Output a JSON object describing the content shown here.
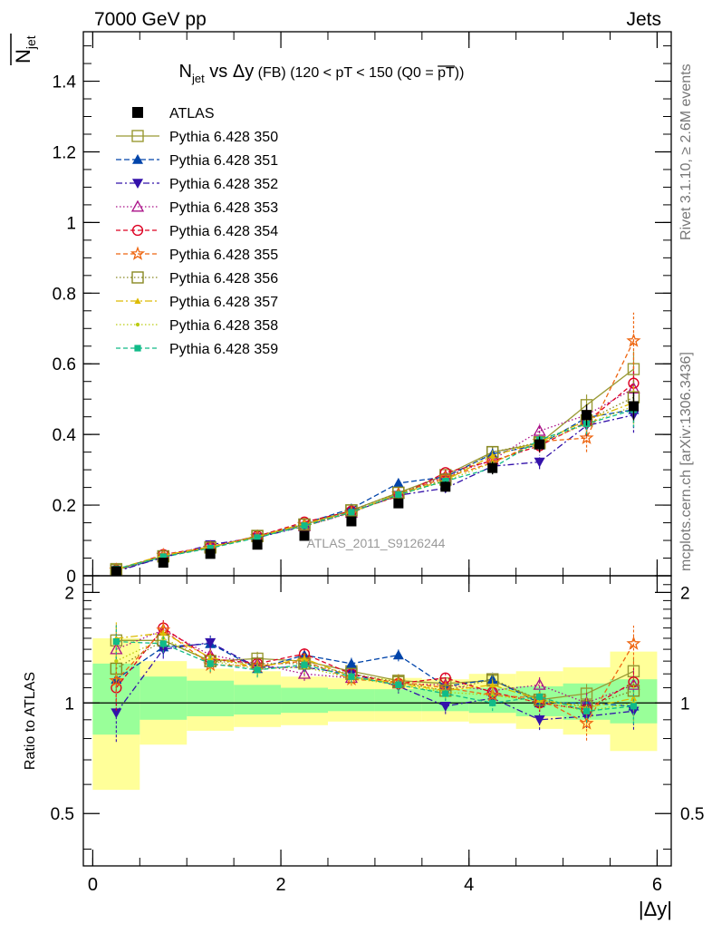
{
  "header": {
    "left": "7000 GeV pp",
    "right": "Jets"
  },
  "side_text": {
    "rivet": "Rivet 3.1.10, ≥ 2.6M events",
    "mcplots": "mcplots.cern.ch [arXiv:1306.3436]"
  },
  "watermark": "ATLAS_2011_S9126244",
  "main_title": {
    "n": "N",
    "n_sub": "jet",
    "vs": " vs ",
    "dy": "Δy",
    "fb": " (FB) ",
    "range": "(120 < pT < 150 (Q0 = ",
    "q0": "pT",
    "close": "))"
  },
  "ylabel_top": {
    "n": "N",
    "sub": "jet"
  },
  "ylabel_bottom": "Ratio to ATLAS",
  "xlabel": "|Δy|",
  "colors": {
    "atlas": "#000000",
    "band_inner": "#99ff99",
    "band_outer": "#ffff99"
  },
  "chart_data": [
    {
      "type": "line",
      "panel": "main",
      "x": [
        0.25,
        0.75,
        1.25,
        1.75,
        2.25,
        2.75,
        3.25,
        3.75,
        4.25,
        4.75,
        5.25,
        5.75
      ],
      "x_edges": [
        0,
        0.5,
        1,
        1.5,
        2,
        2.5,
        3,
        3.5,
        4,
        4.5,
        5,
        5.5,
        6
      ],
      "xlim": [
        -0.1,
        6.15
      ],
      "ylim": [
        0,
        1.54
      ],
      "xticks": [
        0,
        2,
        4,
        6
      ],
      "yticks": [
        0,
        0.2,
        0.4,
        0.6,
        0.8,
        1,
        1.2,
        1.4
      ],
      "ytick_labels": [
        "0",
        "0.2",
        "0.4",
        "0.6",
        "0.8",
        "1",
        "1.2",
        "1.4"
      ],
      "legend_position": "top-left",
      "data": {
        "name": "ATLAS",
        "marker": "square-filled",
        "y": [
          0.013,
          0.037,
          0.062,
          0.088,
          0.113,
          0.154,
          0.205,
          0.252,
          0.305,
          0.372,
          0.455,
          0.48
        ],
        "yerr": [
          0.002,
          0.004,
          0.005,
          0.006,
          0.008,
          0.01,
          0.012,
          0.015,
          0.018,
          0.022,
          0.03,
          0.04
        ]
      },
      "series": [
        {
          "name": "Pythia 6.428 350",
          "color": "#999933",
          "dash": "solid",
          "marker": "square-open",
          "y": [
            0.019,
            0.055,
            0.08,
            0.113,
            0.145,
            0.185,
            0.235,
            0.285,
            0.35,
            0.375,
            0.483,
            0.585
          ],
          "yerr": [
            0.002,
            0.003,
            0.004,
            0.005,
            0.006,
            0.007,
            0.01,
            0.012,
            0.015,
            0.02,
            0.03,
            0.05
          ]
        },
        {
          "name": "Pythia 6.428 351",
          "color": "#0044aa",
          "dash": "6,3",
          "marker": "triangle-up",
          "y": [
            0.015,
            0.052,
            0.082,
            0.108,
            0.148,
            0.19,
            0.262,
            0.28,
            0.345,
            0.37,
            0.448,
            0.47
          ],
          "yerr": [
            0.002,
            0.003,
            0.004,
            0.005,
            0.006,
            0.007,
            0.01,
            0.012,
            0.015,
            0.02,
            0.03,
            0.05
          ]
        },
        {
          "name": "Pythia 6.428 352",
          "color": "#3311aa",
          "dash": "7,3,2,3",
          "marker": "triangle-down",
          "y": [
            0.012,
            0.052,
            0.088,
            0.108,
            0.14,
            0.18,
            0.228,
            0.248,
            0.31,
            0.322,
            0.425,
            0.455
          ],
          "yerr": [
            0.002,
            0.003,
            0.004,
            0.005,
            0.006,
            0.007,
            0.01,
            0.012,
            0.015,
            0.02,
            0.03,
            0.05
          ]
        },
        {
          "name": "Pythia 6.428 353",
          "color": "#aa1188",
          "dash": "1.5,2.5",
          "marker": "triangle-open",
          "y": [
            0.018,
            0.058,
            0.083,
            0.112,
            0.14,
            0.178,
            0.232,
            0.282,
            0.328,
            0.41,
            0.455,
            0.53
          ],
          "yerr": [
            0.002,
            0.003,
            0.004,
            0.005,
            0.006,
            0.007,
            0.01,
            0.012,
            0.015,
            0.02,
            0.03,
            0.05
          ]
        },
        {
          "name": "Pythia 6.428 354",
          "color": "#dd0022",
          "dash": "5,3",
          "marker": "circle-open",
          "y": [
            0.015,
            0.06,
            0.082,
            0.112,
            0.152,
            0.183,
            0.225,
            0.292,
            0.325,
            0.368,
            0.435,
            0.545
          ],
          "yerr": [
            0.002,
            0.003,
            0.004,
            0.005,
            0.006,
            0.007,
            0.01,
            0.012,
            0.015,
            0.02,
            0.03,
            0.05
          ]
        },
        {
          "name": "Pythia 6.428 355",
          "color": "#ee6611",
          "dash": "5,3",
          "marker": "star-open",
          "y": [
            0.016,
            0.058,
            0.078,
            0.11,
            0.145,
            0.178,
            0.232,
            0.278,
            0.32,
            0.38,
            0.39,
            0.665
          ],
          "yerr": [
            0.002,
            0.003,
            0.004,
            0.005,
            0.006,
            0.007,
            0.01,
            0.012,
            0.015,
            0.02,
            0.04,
            0.08
          ]
        },
        {
          "name": "Pythia 6.428 356",
          "color": "#888822",
          "dash": "1.5,2.5",
          "marker": "square-open",
          "y": [
            0.016,
            0.055,
            0.08,
            0.112,
            0.145,
            0.185,
            0.235,
            0.272,
            0.35,
            0.378,
            0.44,
            0.505
          ],
          "yerr": [
            0.002,
            0.003,
            0.004,
            0.005,
            0.006,
            0.007,
            0.01,
            0.012,
            0.015,
            0.02,
            0.03,
            0.05
          ]
        },
        {
          "name": "Pythia 6.428 357",
          "color": "#ddbb00",
          "dash": "8,3,2,3",
          "marker": "tri-small",
          "y": [
            0.019,
            0.058,
            0.082,
            0.11,
            0.148,
            0.18,
            0.232,
            0.27,
            0.34,
            0.378,
            0.44,
            0.49
          ],
          "yerr": [
            0.002,
            0.003,
            0.004,
            0.005,
            0.006,
            0.007,
            0.01,
            0.012,
            0.015,
            0.02,
            0.03,
            0.05
          ]
        },
        {
          "name": "Pythia 6.428 358",
          "color": "#bbcc11",
          "dash": "1.5,2.5",
          "marker": "dot",
          "y": [
            0.017,
            0.055,
            0.08,
            0.11,
            0.14,
            0.18,
            0.228,
            0.268,
            0.32,
            0.375,
            0.43,
            0.48
          ],
          "yerr": [
            0.002,
            0.003,
            0.004,
            0.005,
            0.006,
            0.007,
            0.01,
            0.012,
            0.015,
            0.02,
            0.03,
            0.05
          ]
        },
        {
          "name": "Pythia 6.428 359",
          "color": "#11bb88",
          "dash": "5,3",
          "marker": "square-filled-small",
          "y": [
            0.019,
            0.054,
            0.078,
            0.108,
            0.142,
            0.18,
            0.23,
            0.268,
            0.305,
            0.385,
            0.43,
            0.47
          ],
          "yerr": [
            0.002,
            0.003,
            0.004,
            0.005,
            0.006,
            0.007,
            0.01,
            0.012,
            0.015,
            0.02,
            0.03,
            0.05
          ]
        }
      ]
    },
    {
      "type": "line",
      "panel": "ratio",
      "ylabel": "Ratio to ATLAS",
      "xlabel": "|Δy|",
      "xlim": [
        -0.1,
        6.15
      ],
      "ylim": [
        0.36,
        2.22
      ],
      "log_y": true,
      "xticks": [
        0,
        2,
        4,
        6
      ],
      "xtick_labels": [
        "0",
        "2",
        "4",
        "6"
      ],
      "yticks": [
        0.5,
        1,
        2
      ],
      "ytick_labels": [
        "0.5",
        "1",
        "2"
      ],
      "bands": {
        "x_edges": [
          0,
          0.5,
          1,
          1.5,
          2,
          2.5,
          3,
          3.5,
          4,
          4.5,
          5,
          5.5,
          6
        ],
        "inner_low": [
          0.82,
          0.9,
          0.92,
          0.93,
          0.94,
          0.95,
          0.95,
          0.95,
          0.94,
          0.92,
          0.9,
          0.88
        ],
        "inner_high": [
          1.28,
          1.18,
          1.15,
          1.12,
          1.1,
          1.09,
          1.09,
          1.09,
          1.1,
          1.11,
          1.13,
          1.16
        ],
        "outer_low": [
          0.58,
          0.77,
          0.84,
          0.86,
          0.87,
          0.89,
          0.89,
          0.89,
          0.88,
          0.85,
          0.82,
          0.74
        ],
        "outer_high": [
          1.5,
          1.3,
          1.24,
          1.22,
          1.18,
          1.17,
          1.17,
          1.16,
          1.2,
          1.22,
          1.25,
          1.38
        ]
      },
      "series": [
        {
          "name": "Pythia 6.428 350",
          "y": [
            1.48,
            1.48,
            1.3,
            1.32,
            1.3,
            1.22,
            1.15,
            1.13,
            1.15,
            1.02,
            1.06,
            1.22
          ]
        },
        {
          "name": "Pythia 6.428 351",
          "y": [
            1.16,
            1.42,
            1.45,
            1.24,
            1.35,
            1.28,
            1.35,
            1.11,
            1.16,
            1.0,
            1.0,
            0.98
          ]
        },
        {
          "name": "Pythia 6.428 352",
          "y": [
            0.94,
            1.4,
            1.46,
            1.25,
            1.25,
            1.2,
            1.11,
            0.98,
            1.03,
            0.9,
            0.92,
            0.95
          ]
        },
        {
          "name": "Pythia 6.428 353",
          "y": [
            1.4,
            1.58,
            1.35,
            1.28,
            1.2,
            1.17,
            1.13,
            1.12,
            1.08,
            1.12,
            1.0,
            1.12
          ]
        },
        {
          "name": "Pythia 6.428 354",
          "y": [
            1.1,
            1.6,
            1.32,
            1.28,
            1.36,
            1.2,
            1.13,
            1.17,
            1.07,
            1.0,
            0.96,
            1.14
          ]
        },
        {
          "name": "Pythia 6.428 355",
          "y": [
            1.15,
            1.58,
            1.27,
            1.26,
            1.3,
            1.16,
            1.14,
            1.1,
            1.05,
            1.03,
            0.88,
            1.45
          ]
        },
        {
          "name": "Pythia 6.428 356",
          "y": [
            1.24,
            1.48,
            1.3,
            1.28,
            1.28,
            1.2,
            1.14,
            1.08,
            1.16,
            1.02,
            0.98,
            1.08
          ]
        },
        {
          "name": "Pythia 6.428 357",
          "y": [
            1.5,
            1.55,
            1.33,
            1.25,
            1.32,
            1.18,
            1.13,
            1.08,
            1.12,
            1.02,
            0.97,
            1.03
          ]
        },
        {
          "name": "Pythia 6.428 358",
          "y": [
            1.3,
            1.5,
            1.3,
            1.24,
            1.25,
            1.17,
            1.12,
            1.07,
            1.05,
            1.01,
            0.95,
            1.0
          ]
        },
        {
          "name": "Pythia 6.428 359",
          "y": [
            1.47,
            1.45,
            1.28,
            1.23,
            1.27,
            1.18,
            1.12,
            1.06,
            1.0,
            1.04,
            0.95,
            0.98
          ]
        }
      ]
    }
  ]
}
